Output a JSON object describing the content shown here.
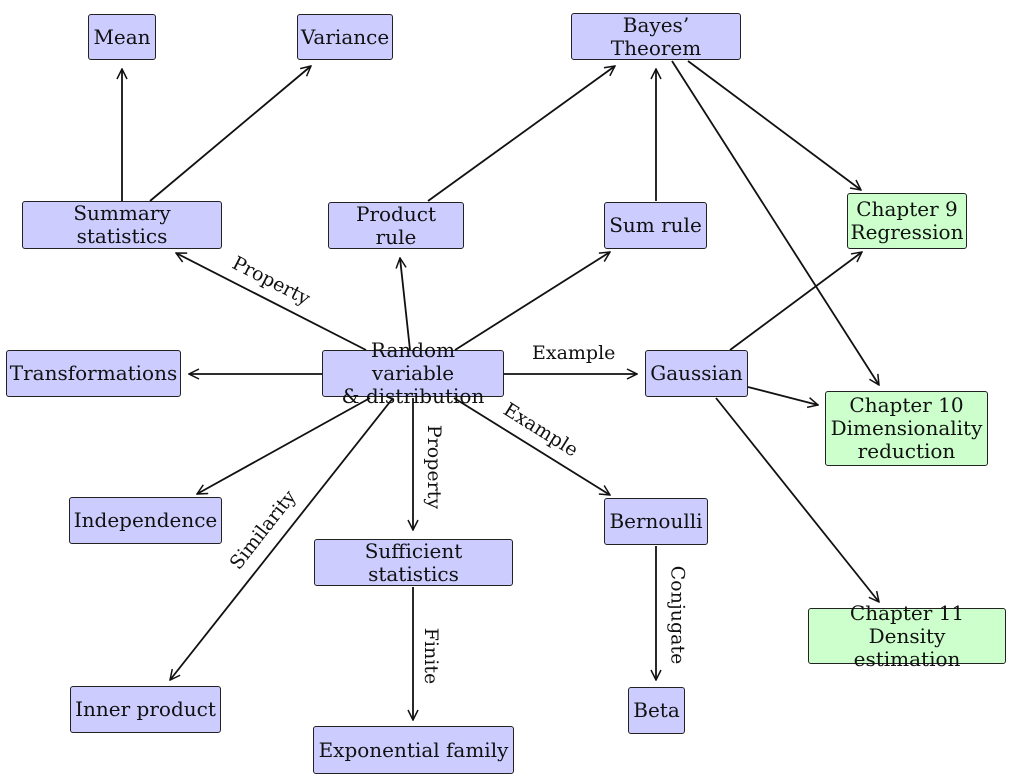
{
  "nodes": {
    "mean": "Mean",
    "variance": "Variance",
    "bayes": "Bayes’ Theorem",
    "summary": "Summary statistics",
    "product": "Product rule",
    "sum": "Sum rule",
    "ch9": "Chapter 9\nRegression",
    "transformations": "Transformations",
    "random": "Random variable\n& distribution",
    "gaussian": "Gaussian",
    "ch10": "Chapter 10\nDimensionality\nreduction",
    "independence": "Independence",
    "bernoulli": "Bernoulli",
    "sufficient": "Sufficient statistics",
    "ch11": "Chapter 11\nDensity estimation",
    "inner": "Inner product",
    "beta": "Beta",
    "exponential": "Exponential family"
  },
  "edge_labels": {
    "property_summary": "Property",
    "example_gaussian": "Example",
    "example_bernoulli": "Example",
    "property_sufficient": "Property",
    "similarity": "Similarity",
    "finite": "Finite",
    "conjugate": "Conjugate"
  },
  "colors": {
    "concept_fill": "#ccccff",
    "chapter_fill": "#ccffcc",
    "stroke": "#111111"
  }
}
